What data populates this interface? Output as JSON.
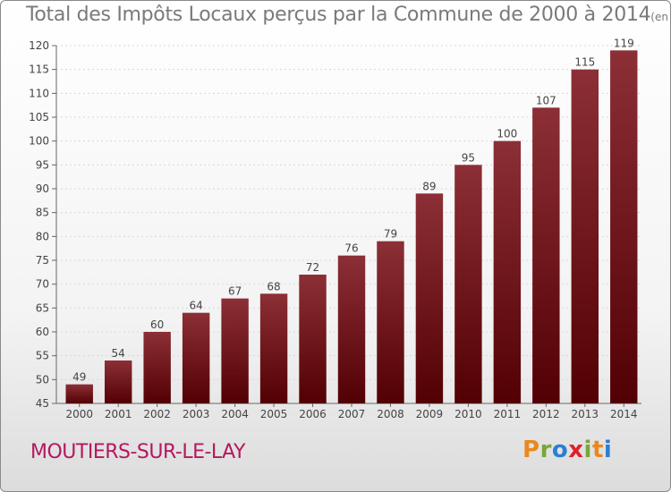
{
  "chart_data": {
    "type": "bar",
    "title": "Total des Impôts Locaux perçus par la Commune de 2000 à 2014",
    "unit_label": "(en milliers d'€)",
    "categories": [
      "2000",
      "2001",
      "2002",
      "2003",
      "2004",
      "2005",
      "2006",
      "2007",
      "2008",
      "2009",
      "2010",
      "2011",
      "2012",
      "2013",
      "2014"
    ],
    "values": [
      49,
      54,
      60,
      64,
      67,
      68,
      72,
      76,
      79,
      89,
      95,
      100,
      107,
      115,
      119
    ],
    "xlabel": "",
    "ylabel": "",
    "ylim": [
      45,
      120
    ],
    "yticks": [
      45,
      50,
      55,
      60,
      65,
      70,
      75,
      80,
      85,
      90,
      95,
      100,
      105,
      110,
      115,
      120
    ],
    "grid": true,
    "bar_color": "#7a1c22"
  },
  "footer": {
    "commune": "MOUTIERS-SUR-LE-LAY",
    "brand": "Proxiti",
    "brand_colors": [
      "#e8891f",
      "#7aa63a",
      "#2a7fd0",
      "#e0202a",
      "#7aa63a",
      "#e8891f",
      "#2a7fd0"
    ]
  }
}
